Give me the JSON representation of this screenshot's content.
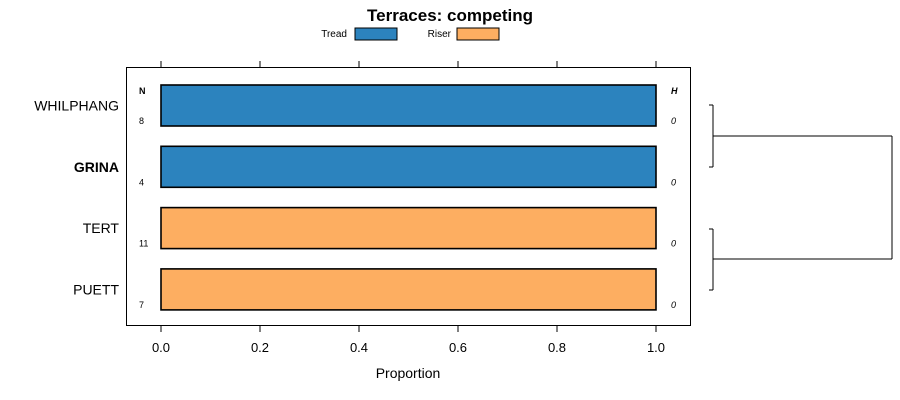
{
  "chart_data": {
    "type": "bar",
    "orientation": "horizontal",
    "stacked": true,
    "title": "Terraces: competing",
    "xlabel": "Proportion",
    "ylabel": "",
    "xlim": [
      -0.07,
      1.07
    ],
    "xticks": [
      0.0,
      0.2,
      0.4,
      0.6,
      0.8,
      1.0
    ],
    "xtick_labels": [
      "0.0",
      "0.2",
      "0.4",
      "0.6",
      "0.8",
      "1.0"
    ],
    "legend": {
      "position": "top",
      "entries": [
        {
          "name": "Tread",
          "color": "#2c83be"
        },
        {
          "name": "Riser",
          "color": "#fdae61"
        }
      ]
    },
    "categories": [
      "WHILPHANG",
      "GRINA",
      "TERT",
      "PUETT"
    ],
    "highlighted_category": "GRINA",
    "series": [
      {
        "name": "Tread",
        "color": "#2c83be",
        "values": [
          1.0,
          1.0,
          0.0,
          0.0
        ]
      },
      {
        "name": "Riser",
        "color": "#fdae61",
        "values": [
          0.0,
          0.0,
          1.0,
          1.0
        ]
      }
    ],
    "n_header": "N",
    "n_values": [
      "8",
      "4",
      "11",
      "7"
    ],
    "h_header": "H",
    "h_values": [
      "0",
      "0",
      "0",
      "0"
    ],
    "dendrogram": {
      "clusters": [
        [
          "WHILPHANG",
          "GRINA"
        ],
        [
          "TERT",
          "PUETT"
        ]
      ]
    }
  }
}
